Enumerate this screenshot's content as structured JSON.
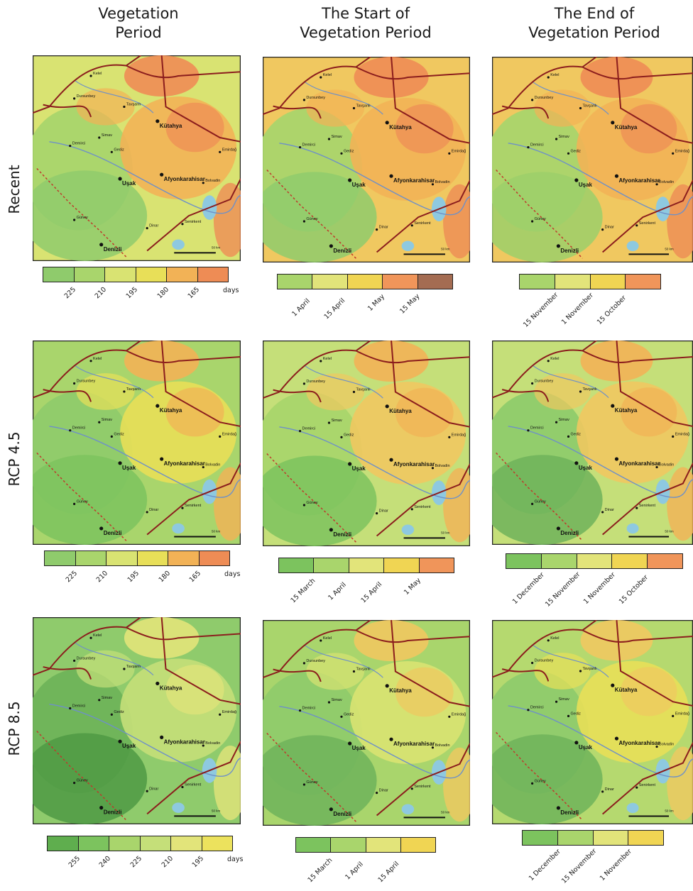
{
  "columns": [
    {
      "id": "c1",
      "title_line1": "Vegetation",
      "title_line2": "Period"
    },
    {
      "id": "c2",
      "title_line1": "The Start of",
      "title_line2": "Vegetation Period"
    },
    {
      "id": "c3",
      "title_line1": "The End of",
      "title_line2": "Vegetation Period"
    }
  ],
  "rows": [
    {
      "id": "recent",
      "label": "Recent"
    },
    {
      "id": "rcp45",
      "label": "RCP 4.5"
    },
    {
      "id": "rcp85",
      "label": "RCP 8.5"
    }
  ],
  "map_labels": {
    "places": [
      "Kelel",
      "Dursunbey",
      "Tavşanlı",
      "Kütahya",
      "Simav",
      "Demirci",
      "Gediz",
      "Emirdağ",
      "Afyonkarahisar",
      "Uşak",
      "Bolvadin",
      "Güney",
      "Dinar",
      "Senirkent",
      "Denizli"
    ],
    "scale_text": "50 km"
  },
  "legends": {
    "recent_c1": {
      "colors": [
        "#8fcb6c",
        "#a9d56c",
        "#d9e372",
        "#e8df58",
        "#f2b256",
        "#ee8c55"
      ],
      "labels": [
        "225",
        "210",
        "195",
        "180",
        "165"
      ],
      "unit": "days"
    },
    "recent_c2": {
      "colors": [
        "#a9d56c",
        "#e2e47a",
        "#f0d553",
        "#f0955a",
        "#a46c52"
      ],
      "labels": [
        "1 April",
        "15 April",
        "1 May",
        "15 May"
      ]
    },
    "recent_c3": {
      "colors": [
        "#a9d56c",
        "#e2e47a",
        "#f0d553",
        "#f0955a"
      ],
      "labels": [
        "15 November",
        "1 November",
        "15 October"
      ]
    },
    "rcp45_c1": {
      "colors": [
        "#8fcb6c",
        "#a9d56c",
        "#d9e372",
        "#e8df58",
        "#f2b256",
        "#ee8c55"
      ],
      "labels": [
        "225",
        "210",
        "195",
        "180",
        "165"
      ],
      "unit": "days"
    },
    "rcp45_c2": {
      "colors": [
        "#7cc35e",
        "#a9d56c",
        "#e2e47a",
        "#f0d553",
        "#f0955a"
      ],
      "labels": [
        "15 March",
        "1 April",
        "15 April",
        "1 May"
      ]
    },
    "rcp45_c3": {
      "colors": [
        "#7cc35e",
        "#a9d56c",
        "#e2e47a",
        "#f0d553",
        "#f0955a"
      ],
      "labels": [
        "1 December",
        "15 November",
        "1 November",
        "15 October"
      ]
    },
    "rcp85_c1": {
      "colors": [
        "#5fae4e",
        "#7cc35e",
        "#a9d56c",
        "#c5df79",
        "#e2e47a",
        "#ece25d"
      ],
      "labels": [
        "255",
        "240",
        "225",
        "210",
        "195"
      ],
      "unit": "days"
    },
    "rcp85_c2": {
      "colors": [
        "#7cc35e",
        "#a9d56c",
        "#e2e47a",
        "#f0d553"
      ],
      "labels": [
        "15 March",
        "1 April",
        "15 April"
      ]
    },
    "rcp85_c3": {
      "colors": [
        "#7cc35e",
        "#a9d56c",
        "#e2e47a",
        "#f0d553"
      ],
      "labels": [
        "1 December",
        "15 November",
        "1 November"
      ]
    }
  },
  "map_palettes": {
    "recent_c1": {
      "base": "#d9e372",
      "warm": "#f2b256",
      "hot": "#ee8c55",
      "cool": "#a9d56c",
      "cold": "#8fcb6c"
    },
    "recent_c2": {
      "base": "#f0c860",
      "warm": "#f2b256",
      "hot": "#ee8c55",
      "cool": "#a9d56c",
      "cold": "#8fcb6c"
    },
    "recent_c3": {
      "base": "#f0c860",
      "warm": "#f2b256",
      "hot": "#ee8c55",
      "cool": "#a9d56c",
      "cold": "#9ccf6a"
    },
    "rcp45_c1": {
      "base": "#a9d56c",
      "warm": "#e8df58",
      "hot": "#f2b256",
      "cool": "#8fcb6c",
      "cold": "#7cc35e"
    },
    "rcp45_c2": {
      "base": "#c5df79",
      "warm": "#f0c860",
      "hot": "#f2b256",
      "cool": "#a9d56c",
      "cold": "#7cc35e"
    },
    "rcp45_c3": {
      "base": "#c5df79",
      "warm": "#f0c860",
      "hot": "#f2b256",
      "cool": "#8fcb6c",
      "cold": "#6fb35a"
    },
    "rcp85_c1": {
      "base": "#8fcb6c",
      "warm": "#c5df79",
      "hot": "#e2e47a",
      "cool": "#6fb35a",
      "cold": "#4f9a44"
    },
    "rcp85_c2": {
      "base": "#a9d56c",
      "warm": "#d9e372",
      "hot": "#f0c860",
      "cool": "#8fcb6c",
      "cold": "#6fb35a"
    },
    "rcp85_c3": {
      "base": "#b5d96f",
      "warm": "#e8df58",
      "hot": "#f0c860",
      "cool": "#8fcb6c",
      "cold": "#6fb35a"
    }
  },
  "colors": {
    "border_road": "#8b1d1d",
    "river": "#6e90c8",
    "dashed": "#c0392b",
    "lake": "#8ec9e0"
  }
}
